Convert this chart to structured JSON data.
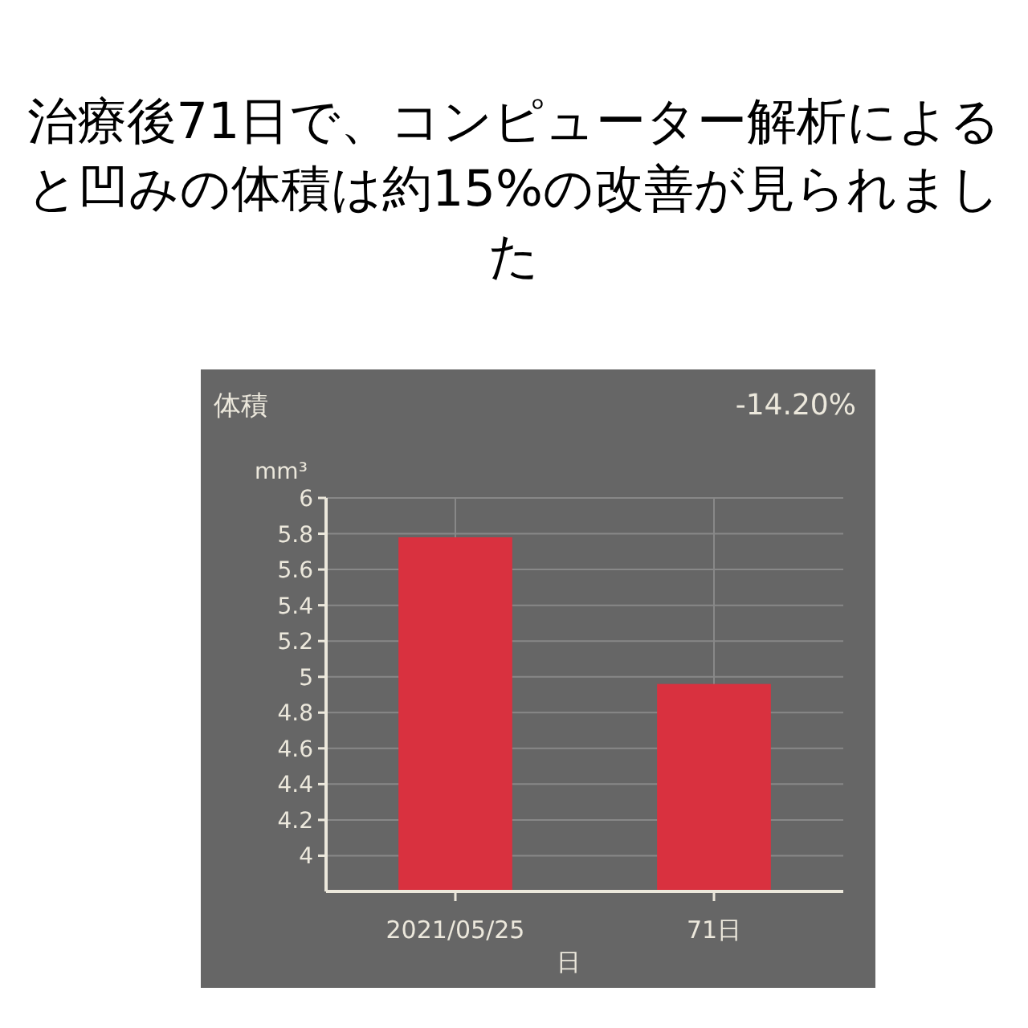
{
  "chart_data": {
    "type": "bar",
    "title": "治療後71日で、コンピューター解析によると凹みの体積は約15%の改善が見られました",
    "subtitle": "体積",
    "annotations": [
      "-14.20%"
    ],
    "ylabel": "mm³",
    "xlabel": "日",
    "categories": [
      "2021/05/25",
      "71日"
    ],
    "values": [
      5.78,
      4.96
    ],
    "color": "#d9313f",
    "ylim": [
      3.8,
      6
    ],
    "yticks": [
      4,
      4.2,
      4.4,
      4.6,
      4.8,
      5,
      5.2,
      5.4,
      5.6,
      5.8,
      6
    ],
    "grid": true
  }
}
